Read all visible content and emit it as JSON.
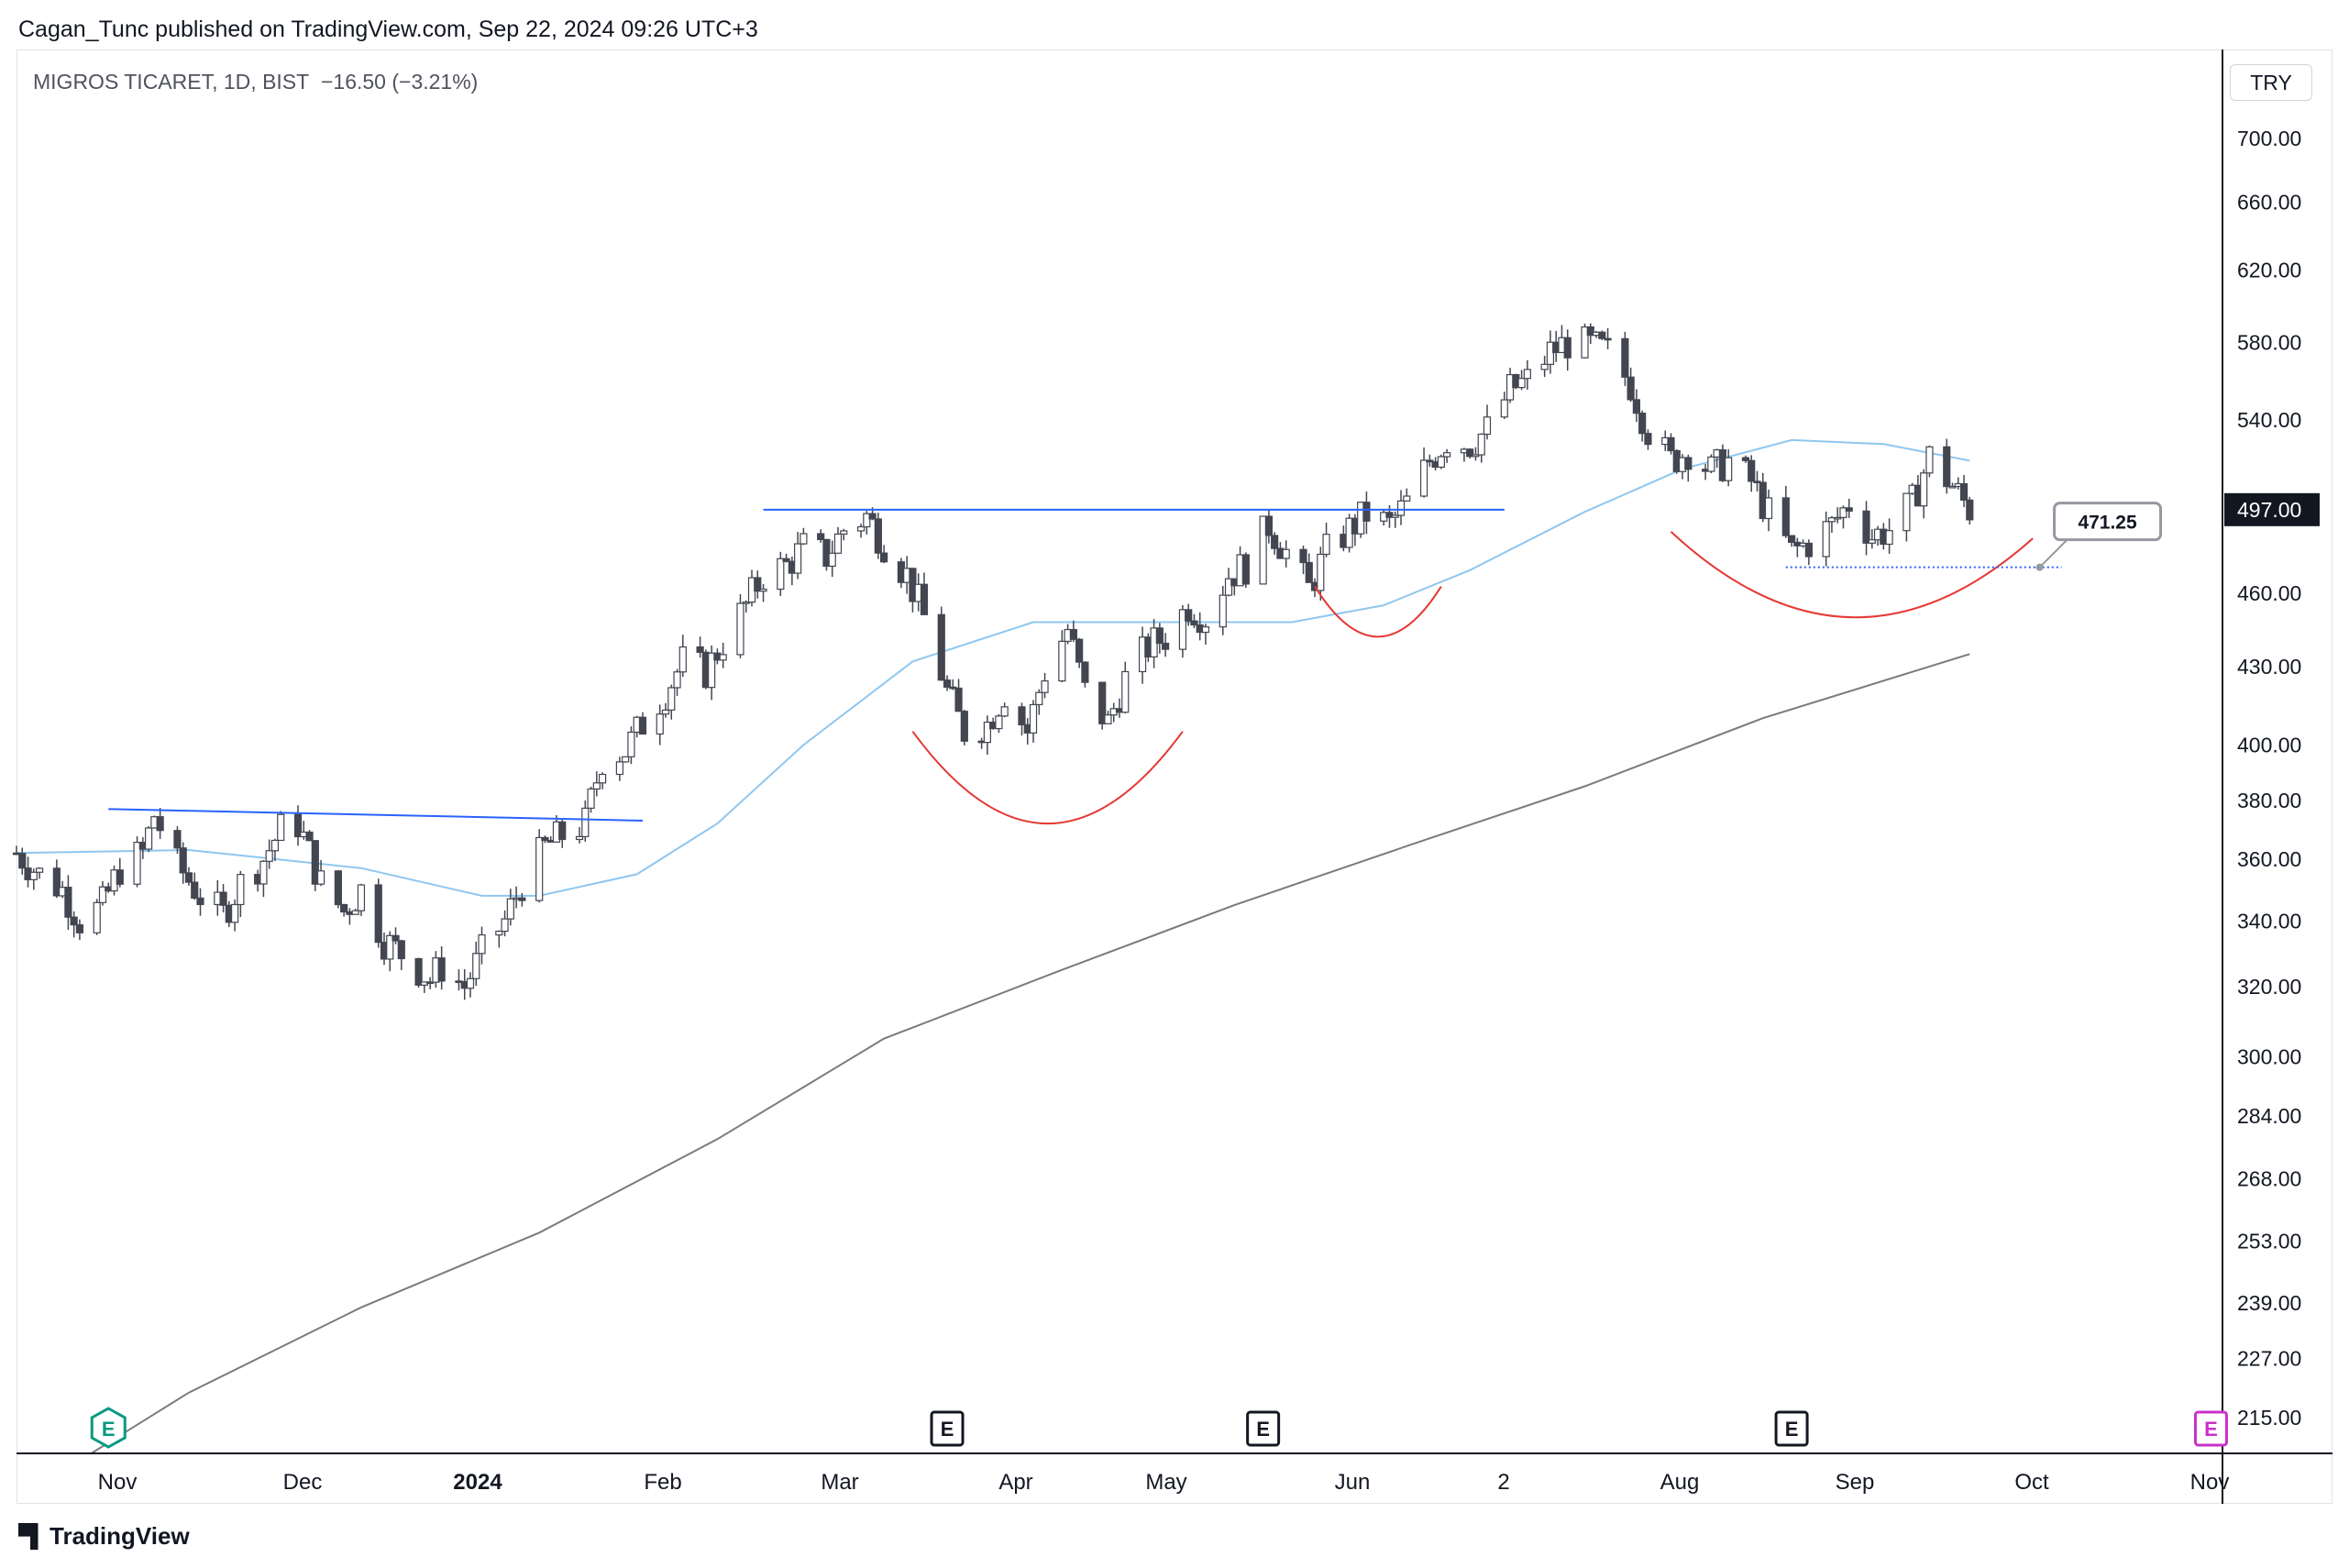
{
  "header": {
    "published_text": "Cagan_Tunc published on TradingView.com, Sep 22, 2024 09:26 UTC+3"
  },
  "symbol": {
    "name": "MIGROS TICARET",
    "interval": "1D",
    "exchange": "BIST",
    "change": "−16.50 (−3.21%)"
  },
  "currency": "TRY",
  "footer": {
    "brand": "TradingView"
  },
  "colors": {
    "candle": "#434651",
    "ma_short": "#8fc7f0",
    "ma_long": "#7b7b7b",
    "trendline": "#2962ff",
    "arc": "#e53935",
    "grid_axis": "#131722"
  },
  "chart_data": {
    "type": "candlestick",
    "scale": "log",
    "price_axis": {
      "ticks": [
        700,
        660,
        620,
        580,
        540,
        460,
        430,
        400,
        380,
        360,
        340,
        320,
        300,
        284,
        268,
        253,
        239,
        227,
        215
      ],
      "tick_labels": [
        "700.00",
        "660.00",
        "620.00",
        "580.00",
        "540.00",
        "460.00",
        "430.00",
        "400.00",
        "380.00",
        "360.00",
        "340.00",
        "320.00",
        "300.00",
        "284.00",
        "268.00",
        "253.00",
        "239.00",
        "227.00",
        "215.00"
      ],
      "ylim": [
        208,
        760
      ]
    },
    "time_axis": {
      "labels": [
        "Nov",
        "Dec",
        "2024",
        "Feb",
        "Mar",
        "Apr",
        "May",
        "Jun",
        "2",
        "Aug",
        "Sep",
        "Oct",
        "Nov"
      ],
      "xlim": [
        "2023-10-16",
        "2024-11-03"
      ]
    },
    "last_price": {
      "value": 497.0,
      "label": "497.00"
    },
    "price_note": {
      "value": 471.25,
      "label": "471.25",
      "from_date": "2024-08-19",
      "to_date": "2024-10-06"
    },
    "ohlc_anchors": [
      [
        "2023-10-16",
        362
      ],
      [
        "2023-10-20",
        355
      ],
      [
        "2023-10-24",
        350
      ],
      [
        "2023-10-27",
        340
      ],
      [
        "2023-10-31",
        345
      ],
      [
        "2023-11-03",
        357
      ],
      [
        "2023-11-07",
        362
      ],
      [
        "2023-11-09",
        375
      ],
      [
        "2023-11-13",
        358
      ],
      [
        "2023-11-17",
        348
      ],
      [
        "2023-11-21",
        342
      ],
      [
        "2023-11-24",
        352
      ],
      [
        "2023-11-28",
        360
      ],
      [
        "2023-12-01",
        370
      ],
      [
        "2023-12-04",
        372
      ],
      [
        "2023-12-08",
        352
      ],
      [
        "2023-12-12",
        343
      ],
      [
        "2023-12-15",
        350
      ],
      [
        "2023-12-19",
        334
      ],
      [
        "2023-12-22",
        330
      ],
      [
        "2023-12-27",
        322
      ],
      [
        "2023-12-29",
        326
      ],
      [
        "2024-01-02",
        320
      ],
      [
        "2024-01-05",
        330
      ],
      [
        "2024-01-09",
        340
      ],
      [
        "2024-01-12",
        352
      ],
      [
        "2024-01-16",
        364
      ],
      [
        "2024-01-19",
        368
      ],
      [
        "2024-01-23",
        372
      ],
      [
        "2024-01-26",
        395
      ],
      [
        "2024-01-30",
        398
      ],
      [
        "2024-02-02",
        408
      ],
      [
        "2024-02-06",
        420
      ],
      [
        "2024-02-09",
        432
      ],
      [
        "2024-02-13",
        428
      ],
      [
        "2024-02-16",
        440
      ],
      [
        "2024-02-20",
        455
      ],
      [
        "2024-02-23",
        468
      ],
      [
        "2024-02-27",
        472
      ],
      [
        "2024-03-01",
        480
      ],
      [
        "2024-03-05",
        476
      ],
      [
        "2024-03-08",
        488
      ],
      [
        "2024-03-12",
        494
      ],
      [
        "2024-03-15",
        482
      ],
      [
        "2024-03-19",
        468
      ],
      [
        "2024-03-22",
        450
      ],
      [
        "2024-03-26",
        420
      ],
      [
        "2024-03-29",
        405
      ],
      [
        "2024-04-02",
        408
      ],
      [
        "2024-04-05",
        420
      ],
      [
        "2024-04-09",
        405
      ],
      [
        "2024-04-12",
        428
      ],
      [
        "2024-04-16",
        445
      ],
      [
        "2024-04-19",
        420
      ],
      [
        "2024-04-23",
        408
      ],
      [
        "2024-04-26",
        425
      ],
      [
        "2024-04-30",
        438
      ],
      [
        "2024-05-03",
        442
      ],
      [
        "2024-05-07",
        455
      ],
      [
        "2024-05-10",
        450
      ],
      [
        "2024-05-14",
        468
      ],
      [
        "2024-05-17",
        472
      ],
      [
        "2024-05-21",
        490
      ],
      [
        "2024-05-24",
        478
      ],
      [
        "2024-05-28",
        462
      ],
      [
        "2024-05-31",
        478
      ],
      [
        "2024-06-04",
        488
      ],
      [
        "2024-06-07",
        495
      ],
      [
        "2024-06-11",
        490
      ],
      [
        "2024-06-14",
        500
      ],
      [
        "2024-06-18",
        520
      ],
      [
        "2024-06-21",
        530
      ],
      [
        "2024-06-25",
        528
      ],
      [
        "2024-06-28",
        535
      ],
      [
        "2024-07-02",
        555
      ],
      [
        "2024-07-05",
        560
      ],
      [
        "2024-07-09",
        575
      ],
      [
        "2024-07-12",
        580
      ],
      [
        "2024-07-16",
        578
      ],
      [
        "2024-07-19",
        575
      ],
      [
        "2024-07-23",
        558
      ],
      [
        "2024-07-26",
        535
      ],
      [
        "2024-07-30",
        520
      ],
      [
        "2024-08-02",
        525
      ],
      [
        "2024-08-06",
        515
      ],
      [
        "2024-08-09",
        520
      ],
      [
        "2024-08-13",
        510
      ],
      [
        "2024-08-16",
        495
      ],
      [
        "2024-08-20",
        478
      ],
      [
        "2024-08-23",
        482
      ],
      [
        "2024-08-27",
        490
      ],
      [
        "2024-08-30",
        500
      ],
      [
        "2024-09-03",
        485
      ],
      [
        "2024-09-06",
        488
      ],
      [
        "2024-09-10",
        500
      ],
      [
        "2024-09-13",
        522
      ],
      [
        "2024-09-17",
        508
      ],
      [
        "2024-09-20",
        497
      ]
    ],
    "ma_short_anchors": [
      [
        "2023-10-16",
        362
      ],
      [
        "2023-11-15",
        363
      ],
      [
        "2023-12-15",
        357
      ],
      [
        "2024-01-05",
        348
      ],
      [
        "2024-01-15",
        348
      ],
      [
        "2024-02-01",
        355
      ],
      [
        "2024-02-15",
        372
      ],
      [
        "2024-03-01",
        400
      ],
      [
        "2024-03-20",
        432
      ],
      [
        "2024-04-10",
        448
      ],
      [
        "2024-05-01",
        448
      ],
      [
        "2024-05-25",
        448
      ],
      [
        "2024-06-10",
        455
      ],
      [
        "2024-06-25",
        470
      ],
      [
        "2024-07-15",
        496
      ],
      [
        "2024-08-01",
        516
      ],
      [
        "2024-08-20",
        530
      ],
      [
        "2024-09-05",
        528
      ],
      [
        "2024-09-20",
        520
      ]
    ],
    "ma_long_anchors": [
      [
        "2023-10-29",
        208
      ],
      [
        "2023-11-15",
        220
      ],
      [
        "2023-12-15",
        238
      ],
      [
        "2024-01-15",
        255
      ],
      [
        "2024-02-15",
        278
      ],
      [
        "2024-03-15",
        305
      ],
      [
        "2024-04-15",
        325
      ],
      [
        "2024-05-15",
        345
      ],
      [
        "2024-06-15",
        365
      ],
      [
        "2024-07-15",
        385
      ],
      [
        "2024-08-15",
        410
      ],
      [
        "2024-09-20",
        435
      ]
    ],
    "trendlines": [
      {
        "from": [
          "2023-11-01",
          377
        ],
        "to": [
          "2024-02-02",
          373
        ]
      },
      {
        "from": [
          "2024-02-23",
          497
        ],
        "to": [
          "2024-07-01",
          497
        ]
      }
    ],
    "arcs": [
      {
        "from": [
          "2024-03-20",
          405
        ],
        "to": [
          "2024-05-06",
          405
        ],
        "depth_price": 372
      },
      {
        "from": [
          "2024-05-29",
          463
        ],
        "to": [
          "2024-06-20",
          463
        ],
        "depth_price": 442
      },
      {
        "from": [
          "2024-07-30",
          487
        ],
        "to": [
          "2024-10-01",
          484
        ],
        "depth_price": 450
      }
    ],
    "event_markers": [
      {
        "date": "2023-11-01",
        "label": "E",
        "color": "#089981",
        "style": "filled"
      },
      {
        "date": "2024-03-26",
        "label": "E",
        "color": "#131722",
        "style": "outline"
      },
      {
        "date": "2024-05-20",
        "label": "E",
        "color": "#131722",
        "style": "outline"
      },
      {
        "date": "2024-08-20",
        "label": "E",
        "color": "#131722",
        "style": "outline"
      },
      {
        "date": "2024-11-01",
        "label": "E",
        "color": "#cc2fca",
        "style": "outline"
      }
    ]
  }
}
